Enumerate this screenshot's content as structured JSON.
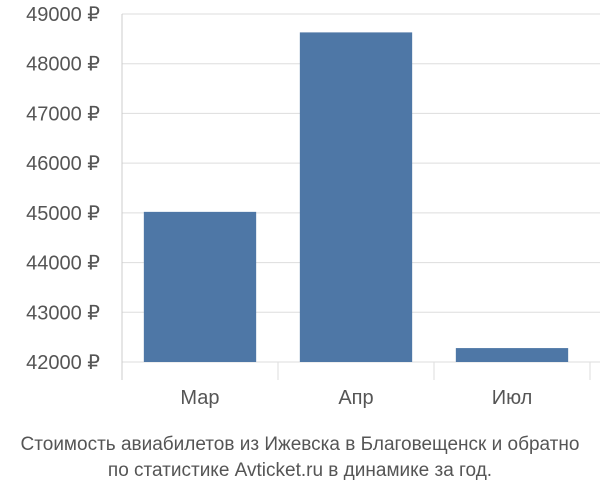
{
  "chart_data": {
    "type": "bar",
    "categories": [
      "Мар",
      "Апр",
      "Июл"
    ],
    "values": [
      45020,
      48630,
      42280
    ],
    "ylim": [
      42000,
      49000
    ],
    "yticks": [
      42000,
      43000,
      44000,
      45000,
      46000,
      47000,
      48000,
      49000
    ],
    "ytick_labels": [
      "42000 ₽",
      "43000 ₽",
      "44000 ₽",
      "45000 ₽",
      "46000 ₽",
      "47000 ₽",
      "48000 ₽",
      "49000 ₽"
    ],
    "grid": true,
    "legend": "none",
    "bar_color": "#4e77a6",
    "grid_color": "#dddddd"
  },
  "caption": {
    "line1": "Стоимость авиабилетов из Ижевска в Благовещенск и обратно",
    "line2": "по статистике Avticket.ru в динамике за год."
  }
}
